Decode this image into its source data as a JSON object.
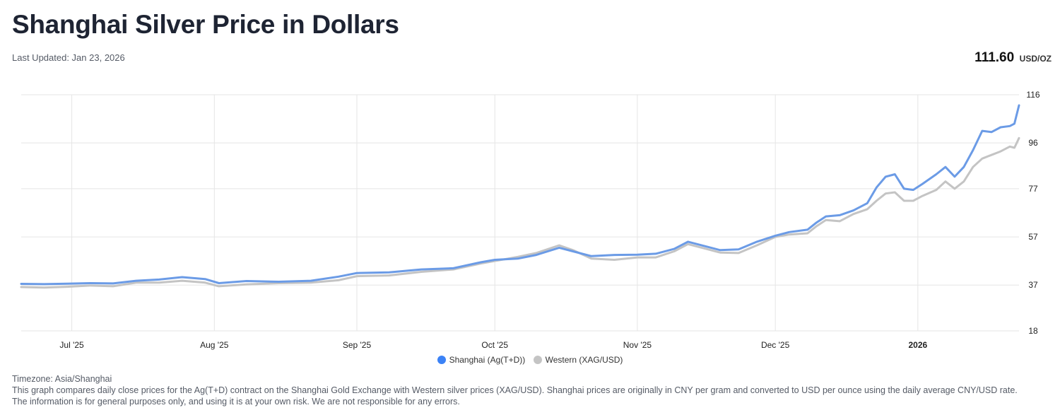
{
  "header": {
    "title": "Shanghai Silver Price in Dollars",
    "last_updated": "Last Updated: Jan 23, 2026",
    "price_value": "111.60",
    "price_unit": "USD/OZ"
  },
  "footer": {
    "timezone": "Timezone: Asia/Shanghai",
    "description": "This graph compares daily close prices for the Ag(T+D) contract on the Shanghai Gold Exchange with Western silver prices (XAG/USD). Shanghai prices are originally in CNY per gram and converted to USD per ounce using the daily average CNY/USD rate.",
    "disclaimer": "The information is for general purposes only, and using it is at your own risk. We are not responsible for any errors."
  },
  "colors": {
    "shanghai": "#6b9be6",
    "shanghai_legend": "#3b82f6",
    "western": "#c4c4c4",
    "grid": "#e5e5e5"
  },
  "chart_data": {
    "type": "line",
    "title": "",
    "xlabel": "",
    "ylabel": "",
    "x_range": [
      "2025-06-20",
      "2026-01-23"
    ],
    "ylim": [
      18,
      116
    ],
    "y_ticks": [
      18,
      37,
      57,
      77,
      96,
      116
    ],
    "x_ticks": [
      {
        "date": "2025-07-01",
        "label": "Jul '25",
        "bold": false
      },
      {
        "date": "2025-08-01",
        "label": "Aug '25",
        "bold": false
      },
      {
        "date": "2025-09-01",
        "label": "Sep '25",
        "bold": false
      },
      {
        "date": "2025-10-01",
        "label": "Oct '25",
        "bold": false
      },
      {
        "date": "2025-11-01",
        "label": "Nov '25",
        "bold": false
      },
      {
        "date": "2025-12-01",
        "label": "Dec '25",
        "bold": false
      },
      {
        "date": "2026-01-01",
        "label": "2026",
        "bold": true
      }
    ],
    "grid": true,
    "legend_position": "bottom-center",
    "series": [
      {
        "name": "Shanghai (Ag(T+D))",
        "points": [
          [
            "2025-06-20",
            37.5
          ],
          [
            "2025-06-25",
            37.4
          ],
          [
            "2025-06-30",
            37.6
          ],
          [
            "2025-07-05",
            37.8
          ],
          [
            "2025-07-10",
            37.7
          ],
          [
            "2025-07-15",
            38.8
          ],
          [
            "2025-07-20",
            39.3
          ],
          [
            "2025-07-25",
            40.3
          ],
          [
            "2025-07-30",
            39.5
          ],
          [
            "2025-08-02",
            37.8
          ],
          [
            "2025-08-08",
            38.7
          ],
          [
            "2025-08-15",
            38.4
          ],
          [
            "2025-08-22",
            38.8
          ],
          [
            "2025-08-28",
            40.5
          ],
          [
            "2025-09-01",
            42.0
          ],
          [
            "2025-09-08",
            42.3
          ],
          [
            "2025-09-15",
            43.5
          ],
          [
            "2025-09-22",
            44.0
          ],
          [
            "2025-09-28",
            46.5
          ],
          [
            "2025-10-01",
            47.5
          ],
          [
            "2025-10-06",
            48.0
          ],
          [
            "2025-10-10",
            49.5
          ],
          [
            "2025-10-15",
            52.5
          ],
          [
            "2025-10-18",
            51.0
          ],
          [
            "2025-10-22",
            49.0
          ],
          [
            "2025-10-27",
            49.5
          ],
          [
            "2025-11-01",
            49.6
          ],
          [
            "2025-11-05",
            50.0
          ],
          [
            "2025-11-09",
            52.0
          ],
          [
            "2025-11-12",
            55.0
          ],
          [
            "2025-11-16",
            53.0
          ],
          [
            "2025-11-19",
            51.5
          ],
          [
            "2025-11-23",
            51.8
          ],
          [
            "2025-11-27",
            55.0
          ],
          [
            "2025-12-01",
            57.5
          ],
          [
            "2025-12-04",
            59.0
          ],
          [
            "2025-12-08",
            60.0
          ],
          [
            "2025-12-10",
            63.0
          ],
          [
            "2025-12-12",
            65.5
          ],
          [
            "2025-12-15",
            66.0
          ],
          [
            "2025-12-18",
            68.0
          ],
          [
            "2025-12-21",
            71.0
          ],
          [
            "2025-12-23",
            77.5
          ],
          [
            "2025-12-25",
            82.0
          ],
          [
            "2025-12-27",
            83.0
          ],
          [
            "2025-12-29",
            77.0
          ],
          [
            "2025-12-31",
            76.5
          ],
          [
            "2026-01-02",
            79.0
          ],
          [
            "2026-01-05",
            83.0
          ],
          [
            "2026-01-07",
            86.0
          ],
          [
            "2026-01-09",
            82.0
          ],
          [
            "2026-01-11",
            86.0
          ],
          [
            "2026-01-13",
            93.0
          ],
          [
            "2026-01-15",
            101.0
          ],
          [
            "2026-01-17",
            100.5
          ],
          [
            "2026-01-19",
            102.5
          ],
          [
            "2026-01-21",
            103.0
          ],
          [
            "2026-01-22",
            104.0
          ],
          [
            "2026-01-23",
            111.6
          ]
        ]
      },
      {
        "name": "Western (XAG/USD)",
        "points": [
          [
            "2025-06-20",
            36.2
          ],
          [
            "2025-06-25",
            36.0
          ],
          [
            "2025-06-30",
            36.3
          ],
          [
            "2025-07-05",
            36.8
          ],
          [
            "2025-07-10",
            36.5
          ],
          [
            "2025-07-15",
            38.0
          ],
          [
            "2025-07-20",
            38.0
          ],
          [
            "2025-07-25",
            38.8
          ],
          [
            "2025-07-30",
            38.0
          ],
          [
            "2025-08-02",
            36.5
          ],
          [
            "2025-08-08",
            37.3
          ],
          [
            "2025-08-15",
            37.8
          ],
          [
            "2025-08-22",
            38.0
          ],
          [
            "2025-08-28",
            39.0
          ],
          [
            "2025-09-01",
            40.7
          ],
          [
            "2025-09-08",
            41.0
          ],
          [
            "2025-09-15",
            42.5
          ],
          [
            "2025-09-22",
            43.5
          ],
          [
            "2025-09-28",
            46.0
          ],
          [
            "2025-10-01",
            47.0
          ],
          [
            "2025-10-06",
            48.7
          ],
          [
            "2025-10-10",
            50.3
          ],
          [
            "2025-10-15",
            53.5
          ],
          [
            "2025-10-18",
            51.5
          ],
          [
            "2025-10-22",
            48.0
          ],
          [
            "2025-10-27",
            47.5
          ],
          [
            "2025-11-01",
            48.5
          ],
          [
            "2025-11-05",
            48.5
          ],
          [
            "2025-11-09",
            51.0
          ],
          [
            "2025-11-12",
            54.0
          ],
          [
            "2025-11-16",
            52.0
          ],
          [
            "2025-11-19",
            50.5
          ],
          [
            "2025-11-23",
            50.3
          ],
          [
            "2025-11-27",
            53.5
          ],
          [
            "2025-12-01",
            57.0
          ],
          [
            "2025-12-04",
            58.0
          ],
          [
            "2025-12-08",
            58.5
          ],
          [
            "2025-12-10",
            61.5
          ],
          [
            "2025-12-12",
            64.0
          ],
          [
            "2025-12-15",
            63.5
          ],
          [
            "2025-12-18",
            66.5
          ],
          [
            "2025-12-21",
            68.5
          ],
          [
            "2025-12-23",
            72.0
          ],
          [
            "2025-12-25",
            75.0
          ],
          [
            "2025-12-27",
            75.5
          ],
          [
            "2025-12-29",
            72.0
          ],
          [
            "2025-12-31",
            72.0
          ],
          [
            "2026-01-02",
            74.0
          ],
          [
            "2026-01-05",
            76.5
          ],
          [
            "2026-01-07",
            80.0
          ],
          [
            "2026-01-09",
            77.0
          ],
          [
            "2026-01-11",
            80.0
          ],
          [
            "2026-01-13",
            86.0
          ],
          [
            "2026-01-15",
            89.5
          ],
          [
            "2026-01-17",
            91.0
          ],
          [
            "2026-01-19",
            92.5
          ],
          [
            "2026-01-21",
            94.5
          ],
          [
            "2026-01-22",
            94.0
          ],
          [
            "2026-01-23",
            98.0
          ]
        ]
      }
    ]
  }
}
